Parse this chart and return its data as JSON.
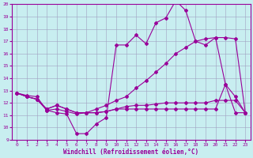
{
  "xlabel": "Windchill (Refroidissement éolien,°C)",
  "bg_color": "#c8eef0",
  "line_color": "#990099",
  "grid_color": "#a0a0c0",
  "xlim": [
    -0.5,
    23.5
  ],
  "ylim": [
    9,
    20
  ],
  "yticks": [
    9,
    10,
    11,
    12,
    13,
    14,
    15,
    16,
    17,
    18,
    19,
    20
  ],
  "xticks": [
    0,
    1,
    2,
    3,
    4,
    5,
    6,
    7,
    8,
    9,
    10,
    11,
    12,
    13,
    14,
    15,
    16,
    17,
    18,
    19,
    20,
    21,
    22,
    23
  ],
  "s1_x": [
    0,
    1,
    2,
    3,
    4,
    5,
    6,
    7,
    8,
    9,
    10,
    11,
    12,
    13,
    14,
    15,
    16,
    17,
    18,
    19,
    20,
    21,
    22,
    23
  ],
  "s1_y": [
    12.8,
    12.6,
    12.5,
    11.4,
    11.2,
    11.1,
    9.5,
    9.5,
    10.3,
    10.8,
    16.7,
    16.7,
    17.5,
    16.8,
    18.5,
    18.9,
    20.3,
    19.5,
    17.0,
    16.7,
    17.3,
    13.5,
    12.5,
    11.2
  ],
  "s2_x": [
    0,
    1,
    2,
    3,
    4,
    5,
    6,
    7,
    8,
    9,
    10,
    11,
    12,
    13,
    14,
    15,
    16,
    17,
    18,
    19,
    20,
    21,
    22,
    23
  ],
  "s2_y": [
    12.8,
    12.5,
    12.3,
    11.4,
    11.5,
    11.3,
    11.1,
    11.2,
    11.5,
    11.8,
    12.2,
    12.5,
    13.2,
    13.8,
    14.5,
    15.2,
    16.0,
    16.5,
    17.0,
    17.2,
    17.3,
    17.3,
    17.2,
    11.2
  ],
  "s3_x": [
    0,
    1,
    2,
    3,
    4,
    5,
    6,
    7,
    8,
    9,
    10,
    11,
    12,
    13,
    14,
    15,
    16,
    17,
    18,
    19,
    20,
    21,
    22,
    23
  ],
  "s3_y": [
    12.8,
    12.5,
    12.3,
    11.5,
    11.8,
    11.5,
    11.2,
    11.2,
    11.2,
    11.3,
    11.5,
    11.7,
    11.8,
    11.8,
    11.9,
    12.0,
    12.0,
    12.0,
    12.0,
    12.0,
    12.2,
    12.2,
    12.2,
    11.2
  ],
  "s4_x": [
    0,
    1,
    2,
    3,
    4,
    5,
    6,
    7,
    8,
    9,
    10,
    11,
    12,
    13,
    14,
    15,
    16,
    17,
    18,
    19,
    20,
    21,
    22,
    23
  ],
  "s4_y": [
    12.8,
    12.5,
    12.3,
    11.5,
    11.8,
    11.5,
    11.2,
    11.2,
    11.2,
    11.3,
    11.5,
    11.5,
    11.5,
    11.5,
    11.5,
    11.5,
    11.5,
    11.5,
    11.5,
    11.5,
    11.5,
    13.5,
    11.2,
    11.2
  ]
}
